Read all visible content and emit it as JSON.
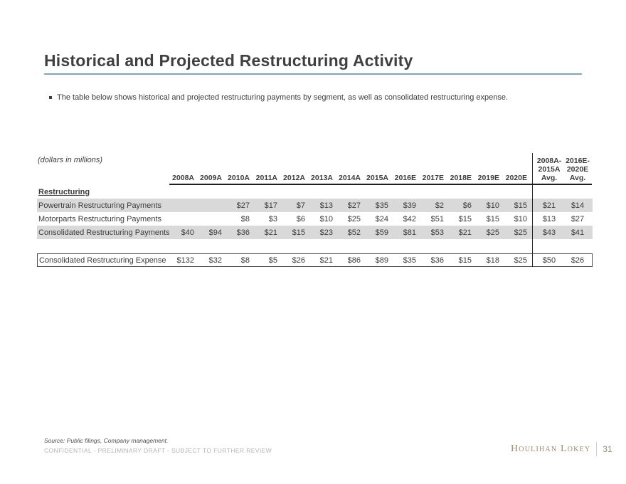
{
  "slide": {
    "title": "Historical and Projected Restructuring Activity",
    "bullet": "The table below shows historical and projected restructuring payments by segment, as well as consolidated restructuring expense.",
    "units_note": "(dollars in millions)",
    "section_label": "Restructuring"
  },
  "table": {
    "columns": [
      "2008A",
      "2009A",
      "2010A",
      "2011A",
      "2012A",
      "2013A",
      "2014A",
      "2015A",
      "2016E",
      "2017E",
      "2018E",
      "2019E",
      "2020E"
    ],
    "avg_columns": [
      {
        "lines": [
          "2008A-",
          "2015A",
          "Avg."
        ]
      },
      {
        "lines": [
          "2016E-",
          "2020E",
          "Avg."
        ]
      }
    ],
    "rows": [
      {
        "label": "Powertrain Restructuring Payments",
        "values": [
          "",
          "",
          "$27",
          "$17",
          "$7",
          "$13",
          "$27",
          "$35",
          "$39",
          "$2",
          "$6",
          "$10",
          "$15"
        ],
        "avg": [
          "$21",
          "$14"
        ],
        "shaded": true
      },
      {
        "label": "Motorparts Restructuring Payments",
        "values": [
          "",
          "",
          "$8",
          "$3",
          "$6",
          "$10",
          "$25",
          "$24",
          "$42",
          "$51",
          "$15",
          "$15",
          "$10"
        ],
        "avg": [
          "$13",
          "$27"
        ],
        "shaded": false
      },
      {
        "label": "Consolidated Restructuring Payments",
        "values": [
          "$40",
          "$94",
          "$36",
          "$21",
          "$15",
          "$23",
          "$52",
          "$59",
          "$81",
          "$53",
          "$21",
          "$25",
          "$25"
        ],
        "avg": [
          "$43",
          "$41"
        ],
        "shaded": true
      }
    ],
    "expense_row": {
      "label": "Consolidated Restructuring Expense",
      "values": [
        "$132",
        "$32",
        "$8",
        "$5",
        "$26",
        "$21",
        "$86",
        "$89",
        "$35",
        "$36",
        "$15",
        "$18",
        "$25"
      ],
      "avg": [
        "$50",
        "$26"
      ]
    }
  },
  "footer": {
    "source": "Source: Public filings, Company management.",
    "confidential": "CONFIDENTIAL - PRELIMINARY DRAFT - SUBJECT TO FURTHER REVIEW",
    "brand": "Houlihan Lokey",
    "page_number": "31"
  },
  "colors": {
    "bg": "#ffffff",
    "title": "#404040",
    "text": "#3c3c3c",
    "rule": "#7da6bf",
    "band": "#d9d9d9",
    "line": "#1f1f1f",
    "box": "#4d4d4d",
    "brand": "#998c70",
    "conf": "#b3b3b3"
  }
}
